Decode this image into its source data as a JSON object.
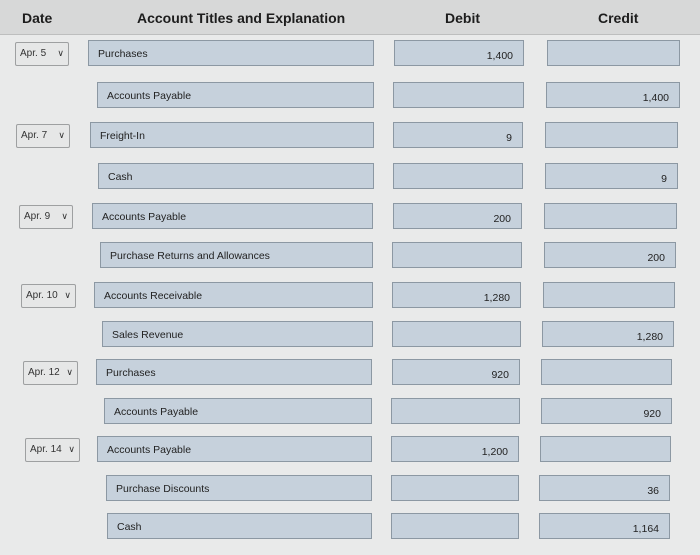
{
  "header": {
    "date": "Date",
    "account": "Account Titles and Explanation",
    "debit": "Debit",
    "credit": "Credit"
  },
  "rows": [
    {
      "date": "Apr. 5",
      "account": "Purchases",
      "debit": "1,400",
      "credit": ""
    },
    {
      "date": "",
      "account": "Accounts Payable",
      "debit": "",
      "credit": "1,400"
    },
    {
      "date": "Apr. 7",
      "account": "Freight-In",
      "debit": "9",
      "credit": ""
    },
    {
      "date": "",
      "account": "Cash",
      "debit": "",
      "credit": "9"
    },
    {
      "date": "Apr. 9",
      "account": "Accounts Payable",
      "debit": "200",
      "credit": ""
    },
    {
      "date": "",
      "account": "Purchase Returns and Allowances",
      "debit": "",
      "credit": "200"
    },
    {
      "date": "Apr. 10",
      "account": "Accounts Receivable",
      "debit": "1,280",
      "credit": ""
    },
    {
      "date": "",
      "account": "Sales Revenue",
      "debit": "",
      "credit": "1,280"
    },
    {
      "date": "Apr. 12",
      "account": "Purchases",
      "debit": "920",
      "credit": ""
    },
    {
      "date": "",
      "account": "Accounts Payable",
      "debit": "",
      "credit": "920"
    },
    {
      "date": "Apr. 14",
      "account": "Accounts Payable",
      "debit": "1,200",
      "credit": ""
    },
    {
      "date": "",
      "account": "Purchase Discounts",
      "debit": "",
      "credit": "36"
    },
    {
      "date": "",
      "account": "Cash",
      "debit": "",
      "credit": "1,164"
    }
  ],
  "colors": {
    "page_bg": "#e9eaea",
    "header_bg": "#d7d8d8",
    "field_bg": "#c6d1dc",
    "field_border": "#8c98a3"
  }
}
